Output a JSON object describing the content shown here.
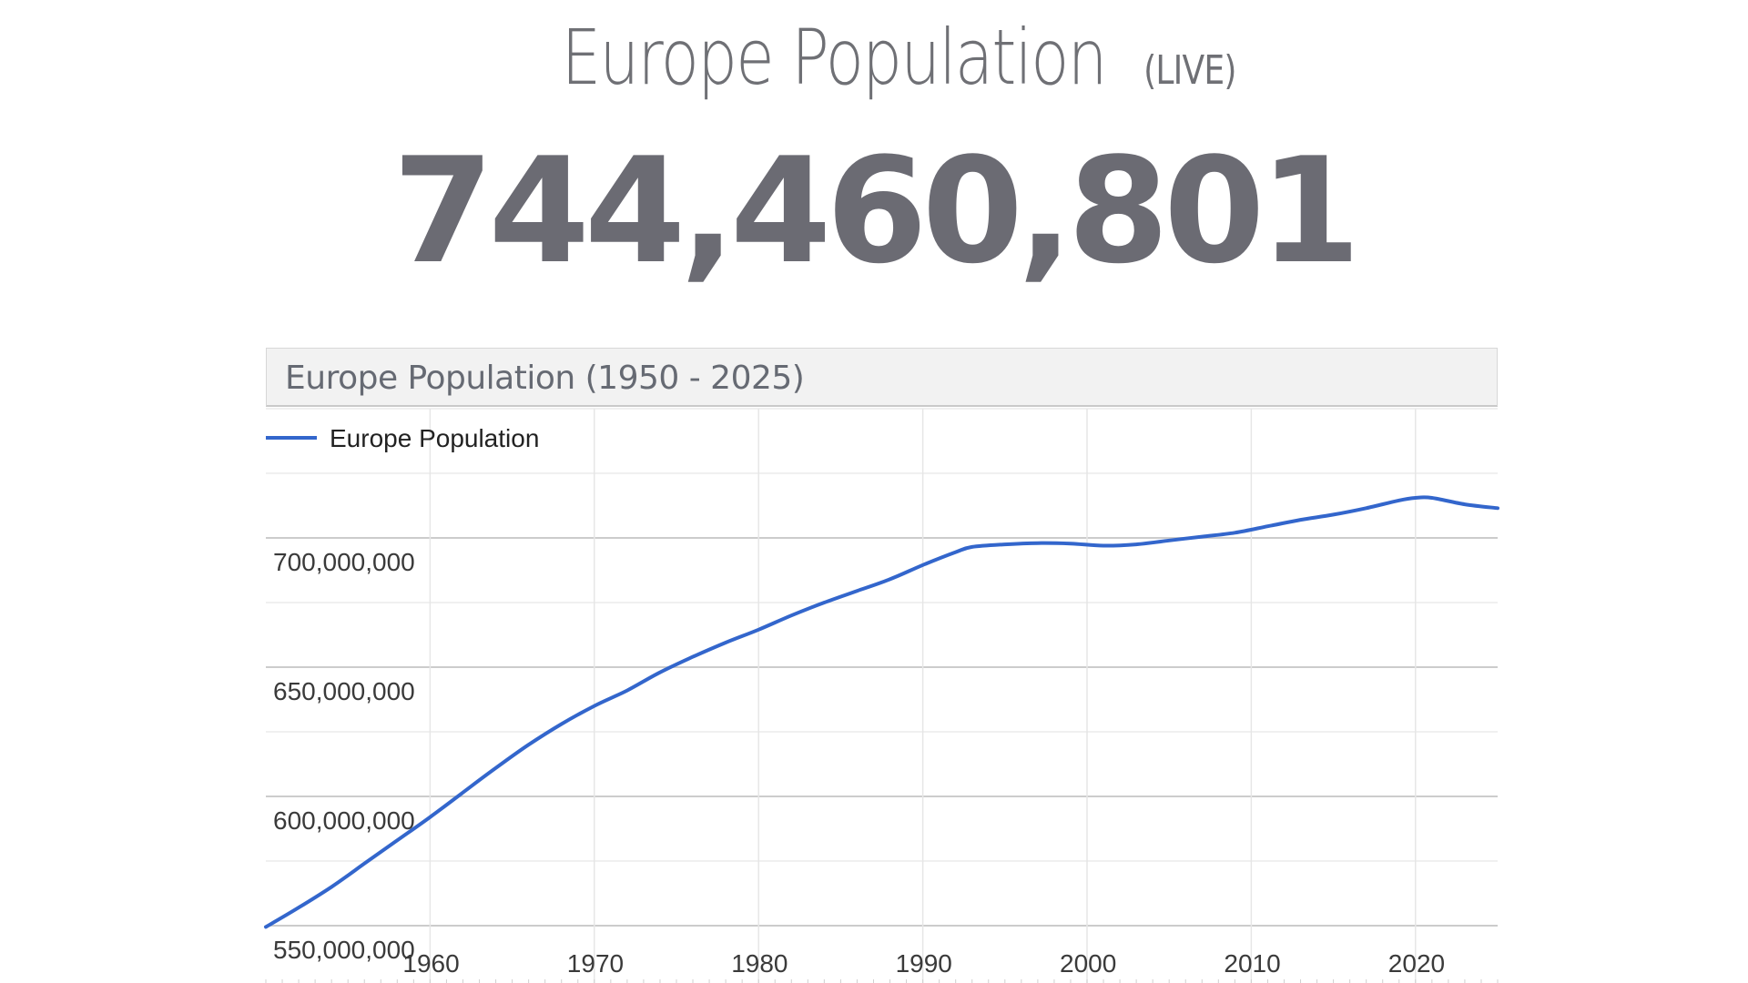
{
  "header": {
    "title": "Europe Population",
    "title_suffix": "(LIVE)",
    "live_count": "744,460,801"
  },
  "chart_data": {
    "type": "line",
    "title": "Europe Population (1950 - 2025)",
    "xlabel": "",
    "ylabel": "",
    "legend_position": "top-left",
    "grid": true,
    "xlim": [
      1950,
      2025
    ],
    "ylim": [
      525000000,
      750000000
    ],
    "y_ticks": [
      550000000,
      600000000,
      650000000,
      700000000
    ],
    "y_tick_labels": [
      "550,000,000",
      "600,000,000",
      "650,000,000",
      "700,000,000"
    ],
    "x_ticks": [
      1960,
      1970,
      1980,
      1990,
      2000,
      2010,
      2020
    ],
    "x_tick_labels": [
      "1960",
      "1970",
      "1980",
      "1990",
      "2000",
      "2010",
      "2020"
    ],
    "series": [
      {
        "name": "Europe Population",
        "color": "#3366cc",
        "x": [
          1950,
          1952,
          1954,
          1956,
          1958,
          1960,
          1962,
          1964,
          1966,
          1968,
          1970,
          1972,
          1974,
          1976,
          1978,
          1980,
          1982,
          1984,
          1986,
          1988,
          1990,
          1992,
          1993,
          1995,
          1997,
          1999,
          2001,
          2003,
          2005,
          2007,
          2009,
          2011,
          2013,
          2015,
          2017,
          2019,
          2020,
          2021,
          2023,
          2025
        ],
        "y": [
          549500000,
          557000000,
          565000000,
          574000000,
          583000000,
          592000000,
          601500000,
          611000000,
          620000000,
          628000000,
          635000000,
          641000000,
          648000000,
          654000000,
          659500000,
          664500000,
          670000000,
          675000000,
          679500000,
          684000000,
          689500000,
          694500000,
          696500000,
          697500000,
          698000000,
          697800000,
          697000000,
          697500000,
          699000000,
          700500000,
          702000000,
          704500000,
          707000000,
          709000000,
          711500000,
          714500000,
          715500000,
          715500000,
          713000000,
          711500000
        ]
      }
    ]
  }
}
